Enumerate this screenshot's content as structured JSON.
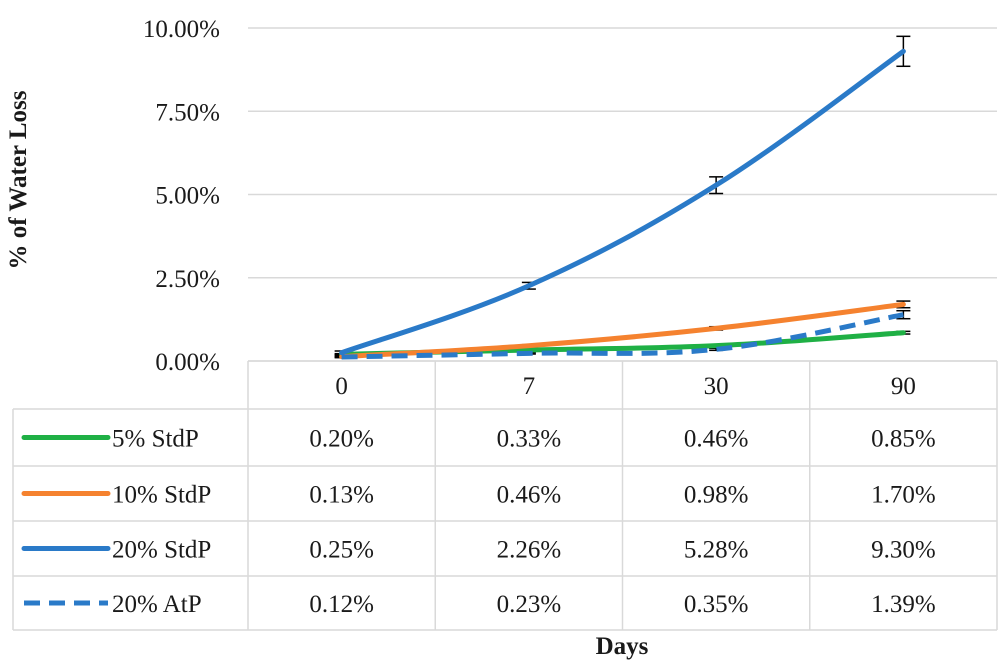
{
  "chart_data": {
    "type": "line",
    "title": "",
    "xlabel": "Days",
    "ylabel": "% of Water Loss",
    "categories": [
      "0",
      "7",
      "30",
      "90"
    ],
    "yticks": [
      "0.00%",
      "2.50%",
      "5.00%",
      "7.50%",
      "10.00%"
    ],
    "ylim": [
      0,
      10
    ],
    "grid": true,
    "legend": "data-table",
    "series": [
      {
        "name": "5% StdP",
        "values": [
          0.2,
          0.33,
          0.46,
          0.85
        ],
        "labels": [
          "0.20%",
          "0.33%",
          "0.46%",
          "0.85%"
        ],
        "color": "#1fb045",
        "dashed": false,
        "error": [
          0.02,
          0.02,
          0.03,
          0.04
        ]
      },
      {
        "name": "10% StdP",
        "values": [
          0.13,
          0.46,
          0.98,
          1.7
        ],
        "labels": [
          "0.13%",
          "0.46%",
          "0.98%",
          "1.70%"
        ],
        "color": "#f5822f",
        "dashed": false,
        "error": [
          0.02,
          0.03,
          0.05,
          0.1
        ]
      },
      {
        "name": "20% StdP",
        "values": [
          0.25,
          2.26,
          5.28,
          9.3
        ],
        "labels": [
          "0.25%",
          "2.26%",
          "5.28%",
          "9.30%"
        ],
        "color": "#2a7ac8",
        "dashed": false,
        "error": [
          0.05,
          0.1,
          0.25,
          0.45
        ]
      },
      {
        "name": "20% AtP",
        "values": [
          0.12,
          0.23,
          0.35,
          1.39
        ],
        "labels": [
          "0.12%",
          "0.23%",
          "0.35%",
          "1.39%"
        ],
        "color": "#2a7ac8",
        "dashed": true,
        "error": [
          0.02,
          0.02,
          0.03,
          0.12
        ]
      }
    ]
  }
}
